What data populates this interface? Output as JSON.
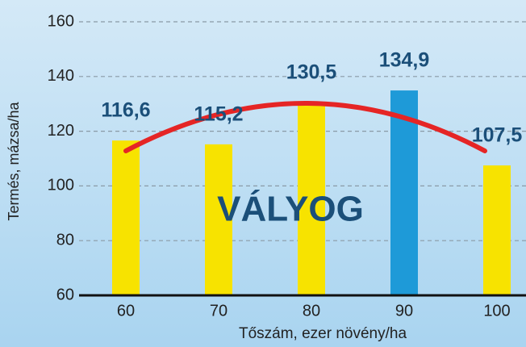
{
  "chart_data": {
    "type": "bar",
    "categories": [
      "60",
      "70",
      "80",
      "90",
      "100"
    ],
    "values": [
      116.6,
      115.2,
      130.5,
      134.9,
      107.5
    ],
    "value_labels": [
      "116,6",
      "115,2",
      "130,5",
      "134,9",
      "107,5"
    ],
    "colors": [
      "#f7e300",
      "#f7e300",
      "#f7e300",
      "#1e9ad8",
      "#f7e300"
    ],
    "ylim": [
      60,
      160
    ],
    "yticks": [
      60,
      80,
      100,
      120,
      140,
      160
    ],
    "grid": true,
    "xlabel": "Tőszám, ezer növény/ha",
    "ylabel": "Termés, mázsa/ha",
    "annotation": "VÁLYOG"
  }
}
